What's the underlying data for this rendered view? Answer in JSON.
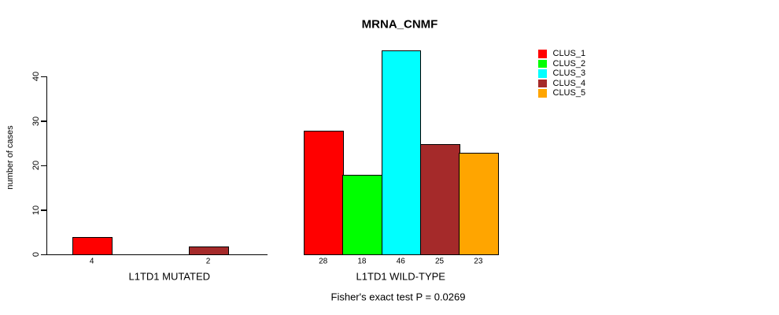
{
  "chart_data": {
    "type": "bar",
    "title": "MRNA_CNMF",
    "ylabel": "number of cases",
    "xlabel": "",
    "yticks": [
      0,
      10,
      20,
      30,
      40
    ],
    "ylim": [
      0,
      46
    ],
    "grid": false,
    "background_color": "#ffffff",
    "axis_color": "#000000",
    "legend_position": "top-right",
    "categories": [
      "L1TD1 MUTATED",
      "L1TD1 WILD-TYPE"
    ],
    "series": [
      {
        "name": "CLUS_1",
        "color": "#FF0000",
        "values": [
          4,
          28
        ]
      },
      {
        "name": "CLUS_2",
        "color": "#00FF00",
        "values": [
          0,
          18
        ]
      },
      {
        "name": "CLUS_3",
        "color": "#00FFFF",
        "values": [
          0,
          46
        ]
      },
      {
        "name": "CLUS_4",
        "color": "#A52A2A",
        "values": [
          2,
          25
        ]
      },
      {
        "name": "CLUS_5",
        "color": "#FFA500",
        "values": [
          0,
          23
        ]
      }
    ],
    "bar_value_labels_visible": [
      "4",
      "2",
      "28",
      "18",
      "46",
      "25",
      "23"
    ],
    "annotation": "Fisher's exact test P = 0.0269"
  }
}
